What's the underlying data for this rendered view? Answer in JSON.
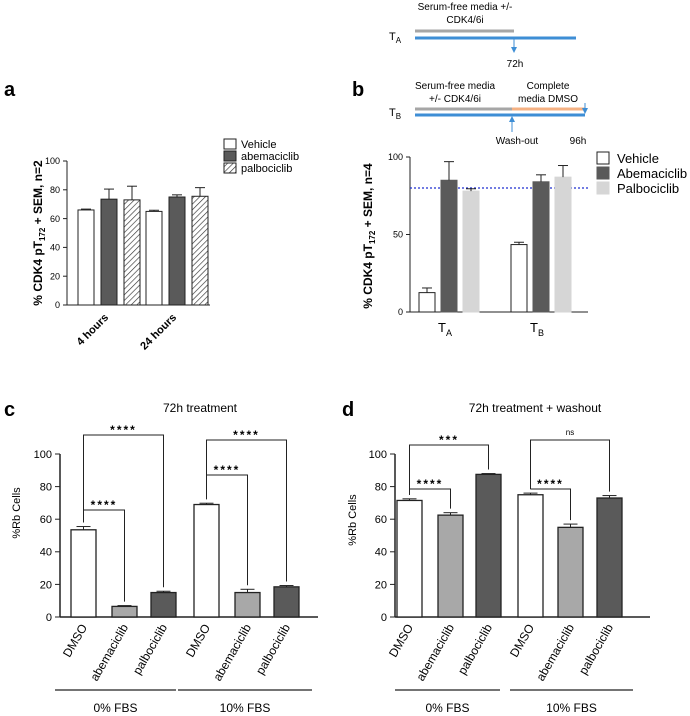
{
  "colors": {
    "blue": "#3e8ed5",
    "grey_line": "#a6a6a6",
    "orange_line": "#f4b183",
    "dark_bar": "#5a5a5a",
    "light_bar": "#d6d6d6",
    "mid_bar": "#a8a8a8",
    "dotted": "#1f2fd0"
  },
  "scheme": {
    "ta": {
      "label": "T",
      "sub": "A",
      "line1": "Serum-free media +/-",
      "line2": "CDK4/6i",
      "time": "72h"
    },
    "tb": {
      "label": "T",
      "sub": "B",
      "left1": "Serum-free media",
      "left2": "+/- CDK4/6i",
      "right1": "Complete",
      "right2": "media DMSO",
      "washout": "Wash-out",
      "time": "96h"
    }
  },
  "chart_data": [
    {
      "panel": "a",
      "type": "bar",
      "title": "",
      "ylabel": "% CDK4 pT172 + SEM, n=2",
      "ylim": [
        0,
        100
      ],
      "yticks": [
        "0",
        "20",
        "40",
        "60",
        "80",
        "100"
      ],
      "categories": [
        "4 hours",
        "24 hours"
      ],
      "legend": [
        "Vehicle",
        "abemaciclib",
        "palbociclib"
      ],
      "series": [
        {
          "name": "Vehicle",
          "values": [
            66,
            65
          ],
          "errors": [
            0.6,
            0.8
          ]
        },
        {
          "name": "abemaciclib",
          "values": [
            73.5,
            75
          ],
          "errors": [
            7,
            1.5
          ]
        },
        {
          "name": "palbociclib",
          "values": [
            73,
            75.5
          ],
          "errors": [
            9.5,
            6
          ]
        }
      ]
    },
    {
      "panel": "b",
      "type": "bar",
      "title": "",
      "ylabel": "% CDK4 pT172 + SEM, n=4",
      "ylim": [
        0,
        100
      ],
      "yticks": [
        "0",
        "50",
        "100"
      ],
      "reference_line": 80,
      "categories": [
        "T_A",
        "T_B"
      ],
      "legend": [
        "Vehicle",
        "Abemaciclib",
        "Palbociclib"
      ],
      "series": [
        {
          "name": "Vehicle",
          "values": [
            12.5,
            43.5
          ],
          "errors": [
            3,
            1.5
          ]
        },
        {
          "name": "Abemaciclib",
          "values": [
            85,
            84
          ],
          "errors": [
            12,
            4.5
          ]
        },
        {
          "name": "Palbociclib",
          "values": [
            78,
            87
          ],
          "errors": [
            1.5,
            7.5
          ]
        }
      ]
    },
    {
      "panel": "c",
      "type": "bar",
      "title": "72h treatment",
      "ylabel": "%Rb Cells",
      "ylim": [
        0,
        100
      ],
      "yticks": [
        "0",
        "20",
        "40",
        "60",
        "80",
        "100"
      ],
      "groups": [
        "0% FBS",
        "10% FBS"
      ],
      "categories": [
        "DMSO",
        "abemaciclib",
        "palbociclib",
        "DMSO",
        "abemaciclib",
        "palbociclib"
      ],
      "values": [
        53.5,
        6.5,
        15,
        69,
        15,
        18.5
      ],
      "errors": [
        2,
        0.5,
        0.8,
        0.8,
        2,
        0.8
      ],
      "significance": [
        {
          "from": 0,
          "to": 1,
          "label": "****"
        },
        {
          "from": 0,
          "to": 2,
          "label": "****"
        },
        {
          "from": 3,
          "to": 4,
          "label": "****"
        },
        {
          "from": 3,
          "to": 5,
          "label": "****"
        }
      ]
    },
    {
      "panel": "d",
      "type": "bar",
      "title": "72h treatment + washout",
      "ylabel": "%Rb Cells",
      "ylim": [
        0,
        100
      ],
      "yticks": [
        "0",
        "20",
        "40",
        "60",
        "80",
        "100"
      ],
      "groups": [
        "0% FBS",
        "10% FBS"
      ],
      "categories": [
        "DMSO",
        "abemaciclib",
        "palbociclib",
        "DMSO",
        "abemaciclib",
        "palbociclib"
      ],
      "values": [
        71.5,
        62.5,
        87.5,
        75,
        55,
        73
      ],
      "errors": [
        1,
        1.5,
        0.5,
        1,
        2,
        1.5
      ],
      "significance": [
        {
          "from": 0,
          "to": 1,
          "label": "****"
        },
        {
          "from": 0,
          "to": 2,
          "label": "***"
        },
        {
          "from": 3,
          "to": 4,
          "label": "****"
        },
        {
          "from": 3,
          "to": 5,
          "label": "ns"
        }
      ]
    }
  ]
}
